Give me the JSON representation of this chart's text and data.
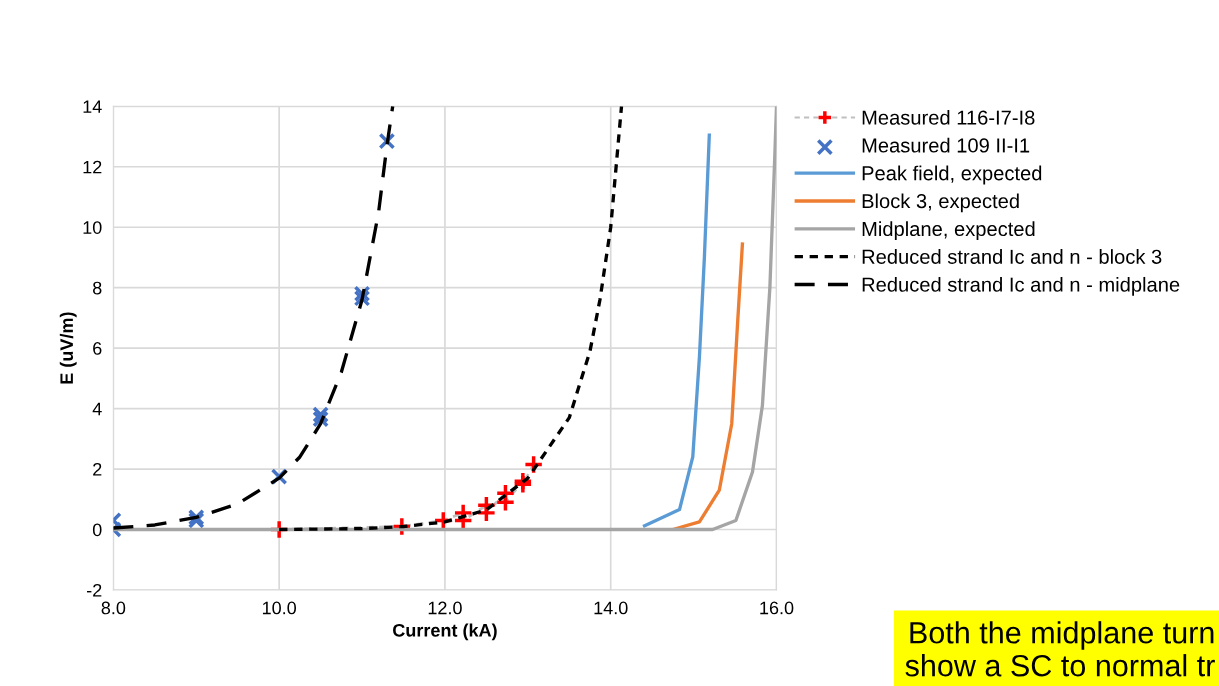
{
  "chart_data": {
    "type": "line",
    "xlabel": "Current (kA)",
    "ylabel": "E (uV/m)",
    "xlim": [
      8.0,
      16.0
    ],
    "xticks": [
      {
        "value": 8,
        "label": "8.0"
      },
      {
        "value": 10,
        "label": "10.0"
      },
      {
        "value": 12,
        "label": "12.0"
      },
      {
        "value": 14,
        "label": "14.0"
      },
      {
        "value": 16,
        "label": "16.0"
      }
    ],
    "ylim": [
      -2,
      14
    ],
    "yticks": [
      -2,
      0,
      2,
      4,
      6,
      8,
      10,
      12,
      14
    ],
    "grid": true,
    "legend": "right",
    "series": [
      {
        "name": "Measured 116-I7-I8",
        "color": "#ff0000",
        "marker": "cross",
        "line_style": "dotted",
        "x": [
          10.0,
          11.48,
          11.98,
          12.22,
          12.22,
          12.5,
          12.5,
          12.73,
          12.73,
          12.94,
          12.94,
          13.07
        ],
        "values": [
          0.0,
          0.1,
          0.3,
          0.55,
          0.3,
          0.8,
          0.55,
          1.2,
          0.9,
          1.6,
          1.5,
          2.15
        ]
      },
      {
        "name": "Measured 109 II-I1",
        "type": "scatter",
        "color": "#4472c4",
        "marker": "x",
        "x": [
          8.0,
          8.0,
          9.0,
          9.0,
          10.0,
          10.5,
          10.5,
          11.0,
          11.0,
          11.3
        ],
        "values": [
          0.3,
          0.0,
          0.4,
          0.3,
          1.75,
          3.8,
          3.65,
          7.8,
          7.65,
          12.85
        ]
      },
      {
        "name": "Peak field, expected",
        "color": "#5b9bd5",
        "line_style": "solid",
        "x": [
          14.39,
          14.83,
          14.99,
          15.07,
          15.13,
          15.19
        ],
        "values": [
          0.1,
          0.66,
          2.4,
          5.7,
          9.0,
          13.1
        ]
      },
      {
        "name": "Block 3, expected",
        "color": "#ed7d31",
        "line_style": "solid",
        "x": [
          14.75,
          15.07,
          15.31,
          15.46,
          15.53,
          15.59
        ],
        "values": [
          0.0,
          0.25,
          1.3,
          3.5,
          6.8,
          9.5
        ]
      },
      {
        "name": "Midplane, expected",
        "color": "#a5a5a5",
        "line_style": "solid",
        "x": [
          8.0,
          15.23,
          15.51,
          15.71,
          15.83,
          15.92,
          15.98,
          16.0
        ],
        "values": [
          0.0,
          0.0,
          0.3,
          1.9,
          4.1,
          8.0,
          12.4,
          14.0
        ]
      },
      {
        "name": "Reduced strand Ic and n - block 3",
        "color": "#000000",
        "line_style": "dotted",
        "x": [
          10.0,
          11.0,
          11.5,
          12.0,
          12.5,
          13.0,
          13.25,
          13.5,
          13.75,
          13.87,
          14.0,
          14.13
        ],
        "values": [
          0.0,
          0.03,
          0.1,
          0.25,
          0.65,
          1.7,
          2.7,
          3.7,
          5.9,
          7.6,
          10.0,
          14.0
        ]
      },
      {
        "name": "Reduced strand Ic and n - midplane",
        "color": "#000000",
        "line_style": "dashed",
        "x": [
          8.0,
          8.5,
          9.0,
          9.5,
          10.0,
          10.25,
          10.5,
          10.75,
          11.0,
          11.2,
          11.3,
          11.37
        ],
        "values": [
          0.05,
          0.15,
          0.4,
          0.85,
          1.7,
          2.4,
          3.5,
          5.2,
          7.6,
          10.5,
          12.7,
          14.0
        ]
      }
    ],
    "annotations": [
      "Both the midplane turn\nshow a SC to normal tr"
    ]
  }
}
